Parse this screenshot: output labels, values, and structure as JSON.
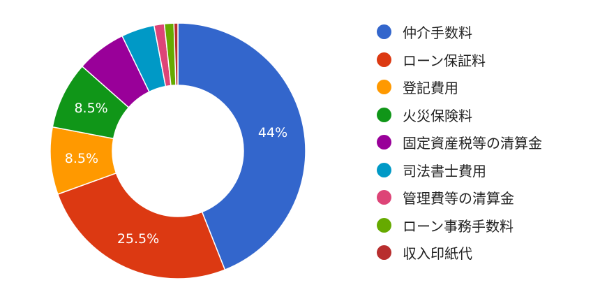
{
  "chart_data": {
    "type": "pie",
    "variant": "donut",
    "title": "",
    "legend_position": "right",
    "categories": [
      "仲介手数料",
      "ローン保証料",
      "登記費用",
      "火災保険料",
      "固定資産税等の清算金",
      "司法書士費用",
      "管理費等の清算金",
      "ローン事務手数料",
      "収入印紙代"
    ],
    "values": [
      44,
      25.5,
      8.5,
      8.5,
      6.3,
      4.2,
      1.3,
      1.2,
      0.5
    ],
    "data_labels": [
      "44%",
      "25.5%",
      "8.5%",
      "8.5%",
      "",
      "",
      "",
      "",
      ""
    ],
    "colors": [
      "#3366cc",
      "#dc3912",
      "#ff9900",
      "#109618",
      "#990099",
      "#0099c6",
      "#dd4477",
      "#66aa00",
      "#b82e2e"
    ]
  }
}
